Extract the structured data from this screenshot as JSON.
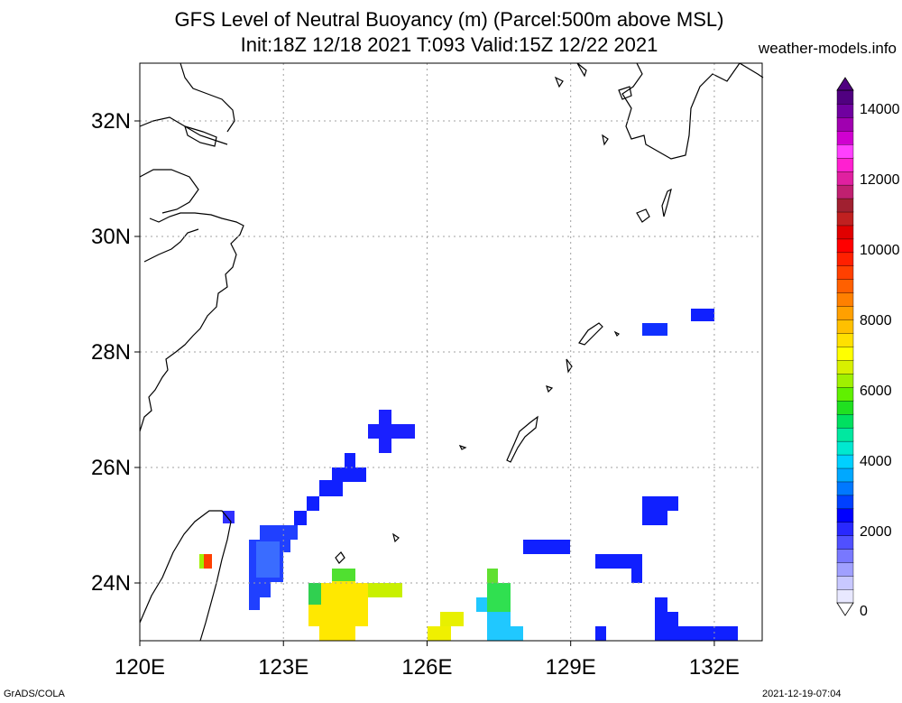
{
  "header": {
    "title_line1": "GFS Level of Neutral Buoyancy (m) (Parcel:500m above MSL)",
    "title_line2": "Init:18Z 12/18 2021 T:093 Valid:15Z 12/22 2021",
    "site": "weather-models.info"
  },
  "footer": {
    "left": "GrADS/COLA",
    "right": "2021-12-19-07:04"
  },
  "map": {
    "lon_range": [
      120,
      133
    ],
    "lat_range": [
      23,
      33
    ],
    "lon_labels": [
      "120E",
      "123E",
      "126E",
      "129E",
      "132E"
    ],
    "lat_labels": [
      "24N",
      "26N",
      "28N",
      "30N",
      "32N"
    ],
    "grid": true
  },
  "colorbar": {
    "labels": [
      "0",
      "2000",
      "4000",
      "6000",
      "8000",
      "10000",
      "12000",
      "14000"
    ],
    "colors": [
      "#e8e8ff",
      "#c8c8ff",
      "#a0a0ff",
      "#7878ff",
      "#5050ff",
      "#2828ff",
      "#0000ff",
      "#0040ff",
      "#0078ff",
      "#00a8ff",
      "#00d0ff",
      "#00e8d0",
      "#00e8a0",
      "#00e060",
      "#20e020",
      "#60f000",
      "#a0f000",
      "#d8f000",
      "#ffff00",
      "#ffe000",
      "#ffc000",
      "#ffa000",
      "#ff8000",
      "#ff6000",
      "#ff4000",
      "#ff2000",
      "#ff0000",
      "#e00000",
      "#c02020",
      "#a02030",
      "#c02070",
      "#e020a0",
      "#ff20d0",
      "#ff40ff",
      "#d000d0",
      "#a000b0",
      "#7000a0",
      "#500080"
    ]
  }
}
